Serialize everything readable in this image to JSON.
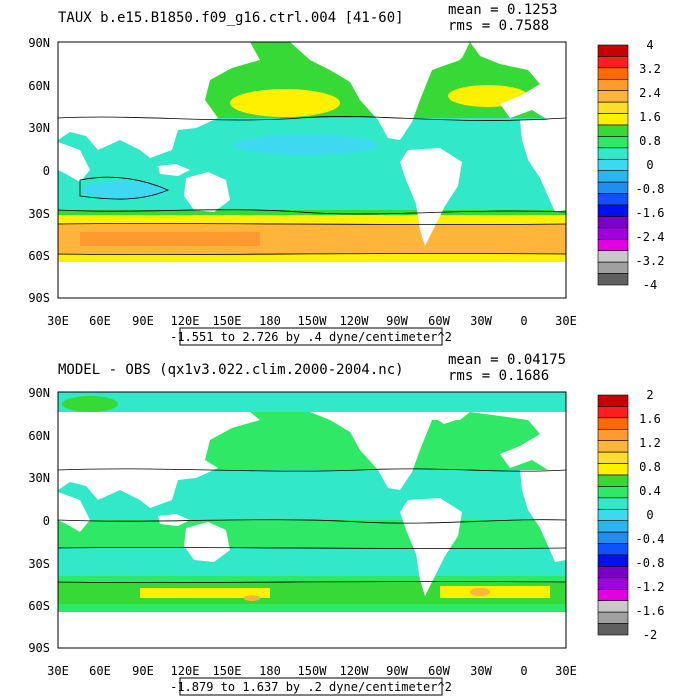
{
  "panels": [
    {
      "title": "TAUX b.e15.B1850.f09_g16.ctrl.004 [41-60]",
      "mean_label": "mean = 0.1253",
      "rms_label": "rms = 0.7588",
      "range_label": "-1.551 to 2.726 by .4 dyne/centimeter^2",
      "colorbar_labels": [
        "4",
        "3.2",
        "2.4",
        "1.6",
        "0.8",
        "0",
        "-0.8",
        "-1.6",
        "-2.4",
        "-3.2",
        "-4"
      ],
      "colorbar_colors": [
        "#c80000",
        "#ff1e1e",
        "#ff6a00",
        "#ff9a2e",
        "#ffb43c",
        "#ffde2a",
        "#fff000",
        "#36d936",
        "#2ee866",
        "#31e8c9",
        "#3cd9f0",
        "#2ab4f0",
        "#1e8ef0",
        "#1050ff",
        "#0010f0",
        "#7a00c8",
        "#a000e0",
        "#e000e0",
        "#c8c8c8",
        "#a0a0a0",
        "#606060"
      ]
    },
    {
      "title": "MODEL - OBS (qx1v3.022.clim.2000-2004.nc)",
      "mean_label": "mean = 0.04175",
      "rms_label": "rms = 0.1686",
      "range_label": "-1.879 to 1.637 by .2 dyne/centimeter^2",
      "colorbar_labels": [
        "2",
        "1.6",
        "1.2",
        "0.8",
        "0.4",
        "0",
        "-0.4",
        "-0.8",
        "-1.2",
        "-1.6",
        "-2"
      ],
      "colorbar_colors": [
        "#c80000",
        "#ff1e1e",
        "#ff6a00",
        "#ff9a2e",
        "#ffb43c",
        "#ffde2a",
        "#fff000",
        "#36d936",
        "#2ee866",
        "#31e8c9",
        "#3cd9f0",
        "#2ab4f0",
        "#1e8ef0",
        "#1050ff",
        "#0010f0",
        "#7a00c8",
        "#a000e0",
        "#e000e0",
        "#c8c8c8",
        "#a0a0a0",
        "#606060"
      ]
    }
  ],
  "lat_labels": [
    "90N",
    "60N",
    "30N",
    "0",
    "30S",
    "60S",
    "90S"
  ],
  "lon_labels": [
    "30E",
    "60E",
    "90E",
    "120E",
    "150E",
    "180",
    "150W",
    "120W",
    "90W",
    "60W",
    "30W",
    "0",
    "30E"
  ],
  "colors": {
    "ocean_base_top": "#31e8c9",
    "ocean_base_bottom": "#2ee866",
    "land": "#ffffff",
    "frame": "#000000"
  }
}
